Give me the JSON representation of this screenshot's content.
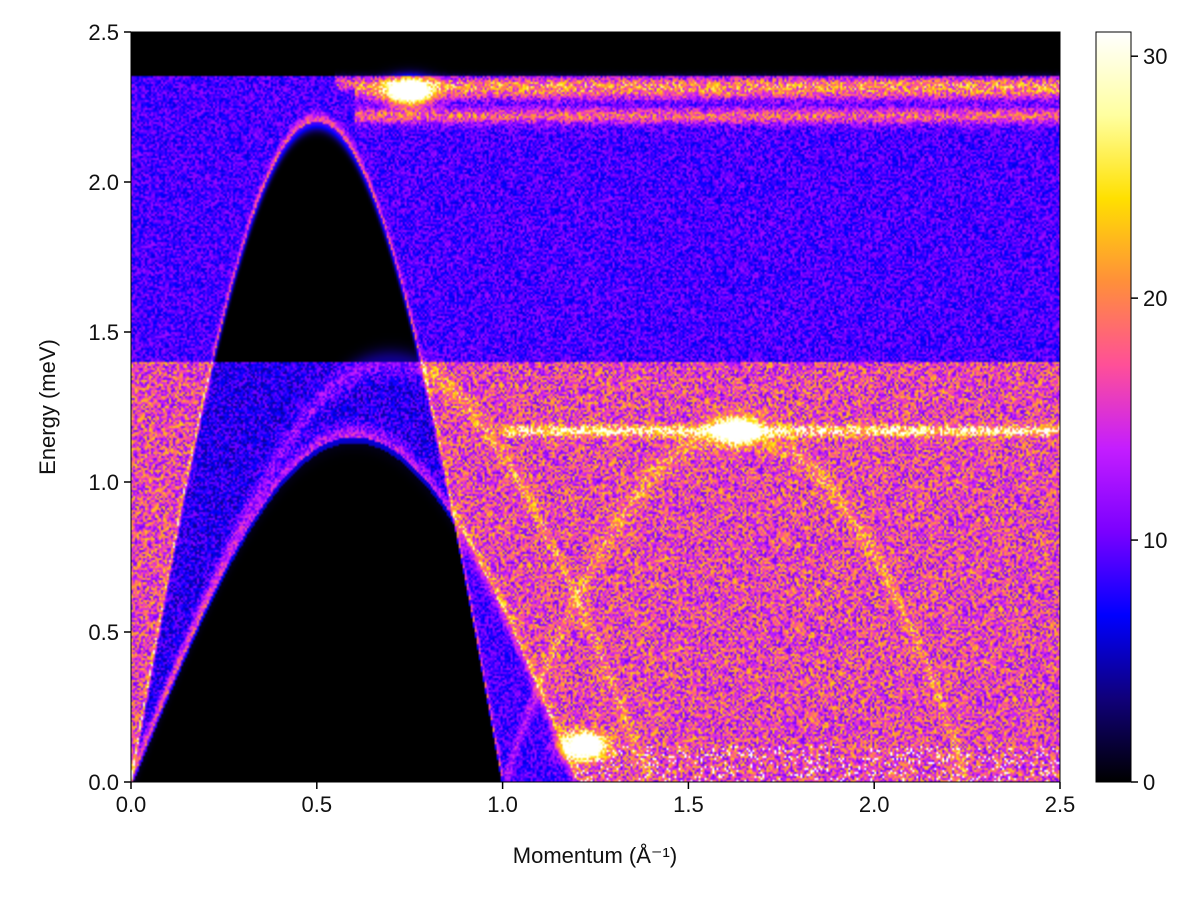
{
  "chart_data": {
    "type": "heatmap",
    "title": "",
    "xlabel": "Momentum (Å⁻¹)",
    "ylabel": "Energy (meV)",
    "xlim": [
      0.0,
      2.5
    ],
    "ylim": [
      0.0,
      2.5
    ],
    "xticks": [
      0.0,
      0.5,
      1.0,
      1.5,
      2.0,
      2.5
    ],
    "yticks": [
      0.0,
      0.5,
      1.0,
      1.5,
      2.0,
      2.5
    ],
    "xtick_labels": [
      "0.0",
      "0.5",
      "1.0",
      "1.5",
      "2.0",
      "2.5"
    ],
    "ytick_labels": [
      "0.0",
      "0.5",
      "1.0",
      "1.5",
      "2.0",
      "2.5"
    ],
    "colorbar": {
      "colormap": "plasma-like (black → blue → magenta → orange → yellow → white)",
      "range": [
        0,
        31
      ],
      "ticks": [
        0,
        10,
        20,
        30
      ],
      "tick_labels": [
        "0",
        "10",
        "20",
        "30"
      ],
      "stops": [
        "#000000",
        "#10007a",
        "#0000ff",
        "#7a00ff",
        "#c41dff",
        "#ff4f98",
        "#ff8f3a",
        "#ffe000",
        "#ffffa0",
        "#ffffff"
      ]
    },
    "dispersion_branches": [
      {
        "branch": "upper",
        "peak_momentum": 0.62,
        "peak_energy": 2.2,
        "zero_momentum": 1.0,
        "onset": 0.0
      },
      {
        "branch": "lower",
        "peak_momentum": 0.62,
        "peak_energy": 1.15,
        "zero_momentum": 1.2,
        "onset": 0.0
      }
    ],
    "continuum_edges_energy": [
      2.35,
      1.4
    ],
    "flat_bands_energy": [
      2.3,
      2.22,
      1.17
    ],
    "hot_spots": [
      {
        "momentum": 0.75,
        "energy": 2.3,
        "intensity": 30
      },
      {
        "momentum": 1.63,
        "energy": 1.17,
        "intensity": 26
      },
      {
        "momentum": 1.22,
        "energy": 0.12,
        "intensity": 31
      }
    ],
    "grid": false,
    "legend": "none"
  }
}
